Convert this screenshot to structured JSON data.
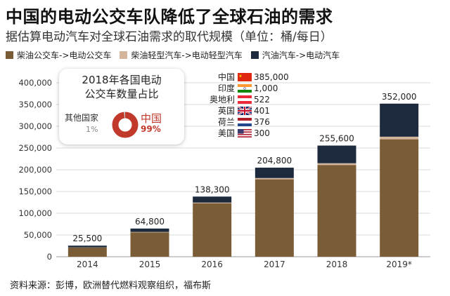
{
  "title": "中国的电动公交车队降低了全球石油的需求",
  "subtitle": "据估算电动汽车对全球石油需求的取代规模（单位：桶/每日）",
  "source": "资料来源：彭博，欧洲替代燃料观察组织，福布斯",
  "colors": {
    "bus": "#7a5c36",
    "light": "#d2b59a",
    "car": "#1d2a3d",
    "china_red": "#c0392b",
    "gray": "#c8c8c8"
  },
  "legend": [
    {
      "label": "柴油公交车->电动公交车",
      "color": "#7a5c36"
    },
    {
      "label": "柴油轻型汽车->电动轻型汽车",
      "color": "#d2b59a"
    },
    {
      "label": "汽油汽车->电动汽车",
      "color": "#1d2a3d"
    }
  ],
  "inset": {
    "title_line1": "2018年各国电动",
    "title_line2": "公交车数量占比",
    "other_label": "其他国家",
    "other_pct": "1%",
    "china_label": "中国",
    "china_pct": "99%",
    "pie_values": [
      99,
      1
    ]
  },
  "countries": [
    {
      "name": "中国",
      "value": "385,000",
      "flag": "china-flag"
    },
    {
      "name": "印度",
      "value": "1,000",
      "flag": "india-flag"
    },
    {
      "name": "奥地利",
      "value": "522",
      "flag": "austria-flag"
    },
    {
      "name": "英国",
      "value": "401",
      "flag": "uk-flag"
    },
    {
      "name": "荷兰",
      "value": "376",
      "flag": "netherlands-flag"
    },
    {
      "name": "美国",
      "value": "300",
      "flag": "usa-flag"
    }
  ],
  "chart_data": {
    "type": "bar",
    "stacked": true,
    "categories": [
      "2014",
      "2015",
      "2016",
      "2017",
      "2018",
      "2019*"
    ],
    "series": [
      {
        "name": "柴油公交车->电动公交车",
        "values": [
          21000,
          56000,
          123000,
          178000,
          211000,
          270000
        ]
      },
      {
        "name": "柴油轻型汽车->电动轻型汽车",
        "values": [
          500,
          1000,
          1500,
          3000,
          4000,
          6000
        ]
      },
      {
        "name": "汽油汽车->电动汽车",
        "values": [
          4000,
          7800,
          13800,
          23800,
          40600,
          76000
        ]
      }
    ],
    "totals": [
      25500,
      64800,
      138300,
      204800,
      255600,
      352000
    ],
    "total_labels": [
      "25,500",
      "64,800",
      "138,300",
      "204,800",
      "255,600",
      "352,000"
    ],
    "y_ticks": [
      "0",
      "50,000",
      "100,000",
      "150,000",
      "200,000",
      "250,000",
      "300,000",
      "350,000",
      "400,000"
    ],
    "ylim": [
      0,
      400000
    ],
    "grid": true
  }
}
